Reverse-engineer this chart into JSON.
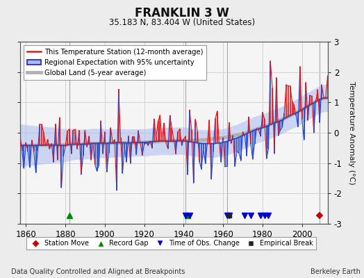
{
  "title": "FRANKLIN 3 W",
  "subtitle": "35.183 N, 83.404 W (United States)",
  "footer_left": "Data Quality Controlled and Aligned at Breakpoints",
  "footer_right": "Berkeley Earth",
  "xlabel_years": [
    1860,
    1880,
    1900,
    1920,
    1940,
    1960,
    1980,
    2000
  ],
  "ylim": [
    -3,
    3
  ],
  "yticks": [
    -3,
    -2,
    -1,
    0,
    1,
    2,
    3
  ],
  "year_start": 1857,
  "year_end": 2013,
  "legend_entries": [
    {
      "label": "This Temperature Station (12-month average)",
      "color": "#ee1111"
    },
    {
      "label": "Regional Expectation with 95% uncertainty",
      "color": "#3333cc"
    },
    {
      "label": "Global Land (5-year average)",
      "color": "#aaaaaa"
    }
  ],
  "marker_legend": [
    {
      "label": "Station Move",
      "marker": "D",
      "color": "#cc0000"
    },
    {
      "label": "Record Gap",
      "marker": "^",
      "color": "#008800"
    },
    {
      "label": "Time of Obs. Change",
      "marker": "v",
      "color": "#0000cc"
    },
    {
      "label": "Empirical Break",
      "marker": "s",
      "color": "#222222"
    }
  ],
  "station_moves": [
    2009
  ],
  "record_gaps": [
    1882,
    1942
  ],
  "time_obs_changes": [
    1941,
    1943,
    1962,
    1963,
    1971,
    1974,
    1979,
    1981,
    1983
  ],
  "empirical_breaks": [
    1963
  ],
  "background_color": "#ececec",
  "plot_bg_color": "#f5f5f5",
  "grid_color": "#cccccc",
  "seed": 17
}
